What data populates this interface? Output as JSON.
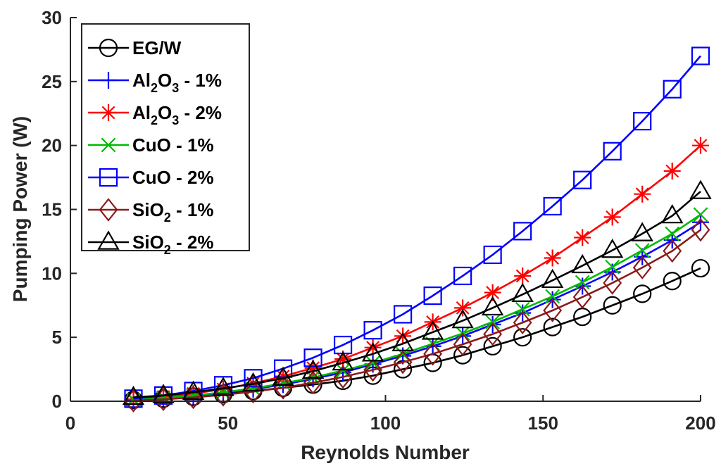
{
  "chart_data": {
    "type": "line",
    "xlabel": "Reynolds Number",
    "ylabel": "Pumping Power (W)",
    "xlim": [
      0,
      200
    ],
    "ylim": [
      0,
      30
    ],
    "xticks": [
      "0",
      "50",
      "100",
      "150",
      "200"
    ],
    "yticks": [
      "0",
      "5",
      "10",
      "15",
      "20",
      "25",
      "30"
    ],
    "legend_position": "top-left",
    "grid": false,
    "x": [
      20,
      29.5,
      39,
      48.5,
      58,
      67.5,
      77,
      86.5,
      96,
      105.5,
      115,
      124.5,
      134,
      143.5,
      153,
      162.5,
      172,
      181.5,
      191,
      200
    ],
    "series": [
      {
        "name": "EG/W",
        "legend_main": "EG/W",
        "legend_tail": "",
        "marker": "circle",
        "color": "#000000",
        "values": [
          0.1,
          0.2,
          0.35,
          0.55,
          0.8,
          1.05,
          1.3,
          1.6,
          2.0,
          2.5,
          3.0,
          3.6,
          4.3,
          5.0,
          5.8,
          6.6,
          7.5,
          8.4,
          9.4,
          10.4
        ]
      },
      {
        "name": "Al2O3 - 1%",
        "legend_main": "Al",
        "legend_sub1": "2",
        "legend_mid": "O",
        "legend_sub2": "3",
        "legend_tail": " - 1%",
        "marker": "plus",
        "color": "#0000ff",
        "values": [
          0.1,
          0.25,
          0.4,
          0.65,
          0.95,
          1.3,
          1.75,
          2.25,
          2.9,
          3.55,
          4.3,
          5.1,
          6.0,
          6.9,
          7.95,
          9.0,
          10.1,
          11.3,
          12.6,
          14.0
        ]
      },
      {
        "name": "Al2O3 - 2%",
        "legend_main": "Al",
        "legend_sub1": "2",
        "legend_mid": "O",
        "legend_sub2": "3",
        "legend_tail": " - 2%",
        "marker": "asterisk",
        "color": "#ff0000",
        "values": [
          0.15,
          0.35,
          0.6,
          0.95,
          1.4,
          1.95,
          2.6,
          3.3,
          4.2,
          5.1,
          6.2,
          7.3,
          8.5,
          9.8,
          11.2,
          12.8,
          14.4,
          16.2,
          18.0,
          20.0
        ]
      },
      {
        "name": "CuO - 1%",
        "legend_main": "CuO - 1%",
        "legend_tail": "",
        "marker": "x",
        "color": "#00bb00",
        "values": [
          0.1,
          0.25,
          0.45,
          0.7,
          1.0,
          1.4,
          1.85,
          2.4,
          3.0,
          3.7,
          4.5,
          5.3,
          6.2,
          7.2,
          8.2,
          9.3,
          10.5,
          11.8,
          13.1,
          14.6
        ]
      },
      {
        "name": "CuO - 2%",
        "legend_main": "CuO - 2%",
        "legend_tail": "",
        "marker": "square",
        "color": "#0000ff",
        "values": [
          0.2,
          0.45,
          0.8,
          1.25,
          1.8,
          2.55,
          3.4,
          4.4,
          5.55,
          6.8,
          8.25,
          9.8,
          11.45,
          13.3,
          15.25,
          17.3,
          19.55,
          21.9,
          24.4,
          27.0
        ]
      },
      {
        "name": "SiO2 - 1%",
        "legend_main": "SiO",
        "legend_sub1": "2",
        "legend_tail": " - 1%",
        "marker": "diamond",
        "color": "#8b1a1a",
        "values": [
          0.05,
          0.15,
          0.3,
          0.5,
          0.75,
          1.05,
          1.45,
          1.9,
          2.45,
          3.05,
          3.7,
          4.45,
          5.25,
          6.15,
          7.1,
          8.15,
          9.25,
          10.45,
          11.75,
          13.4
        ]
      },
      {
        "name": "SiO2 - 2%",
        "legend_main": "SiO",
        "legend_sub1": "2",
        "legend_tail": " - 2%",
        "marker": "triangle",
        "color": "#000000",
        "values": [
          0.3,
          0.45,
          0.7,
          1.0,
          1.35,
          1.8,
          2.35,
          3.0,
          3.7,
          4.5,
          5.4,
          6.3,
          7.3,
          8.35,
          9.45,
          10.6,
          11.8,
          13.1,
          14.5,
          16.4
        ]
      }
    ]
  }
}
